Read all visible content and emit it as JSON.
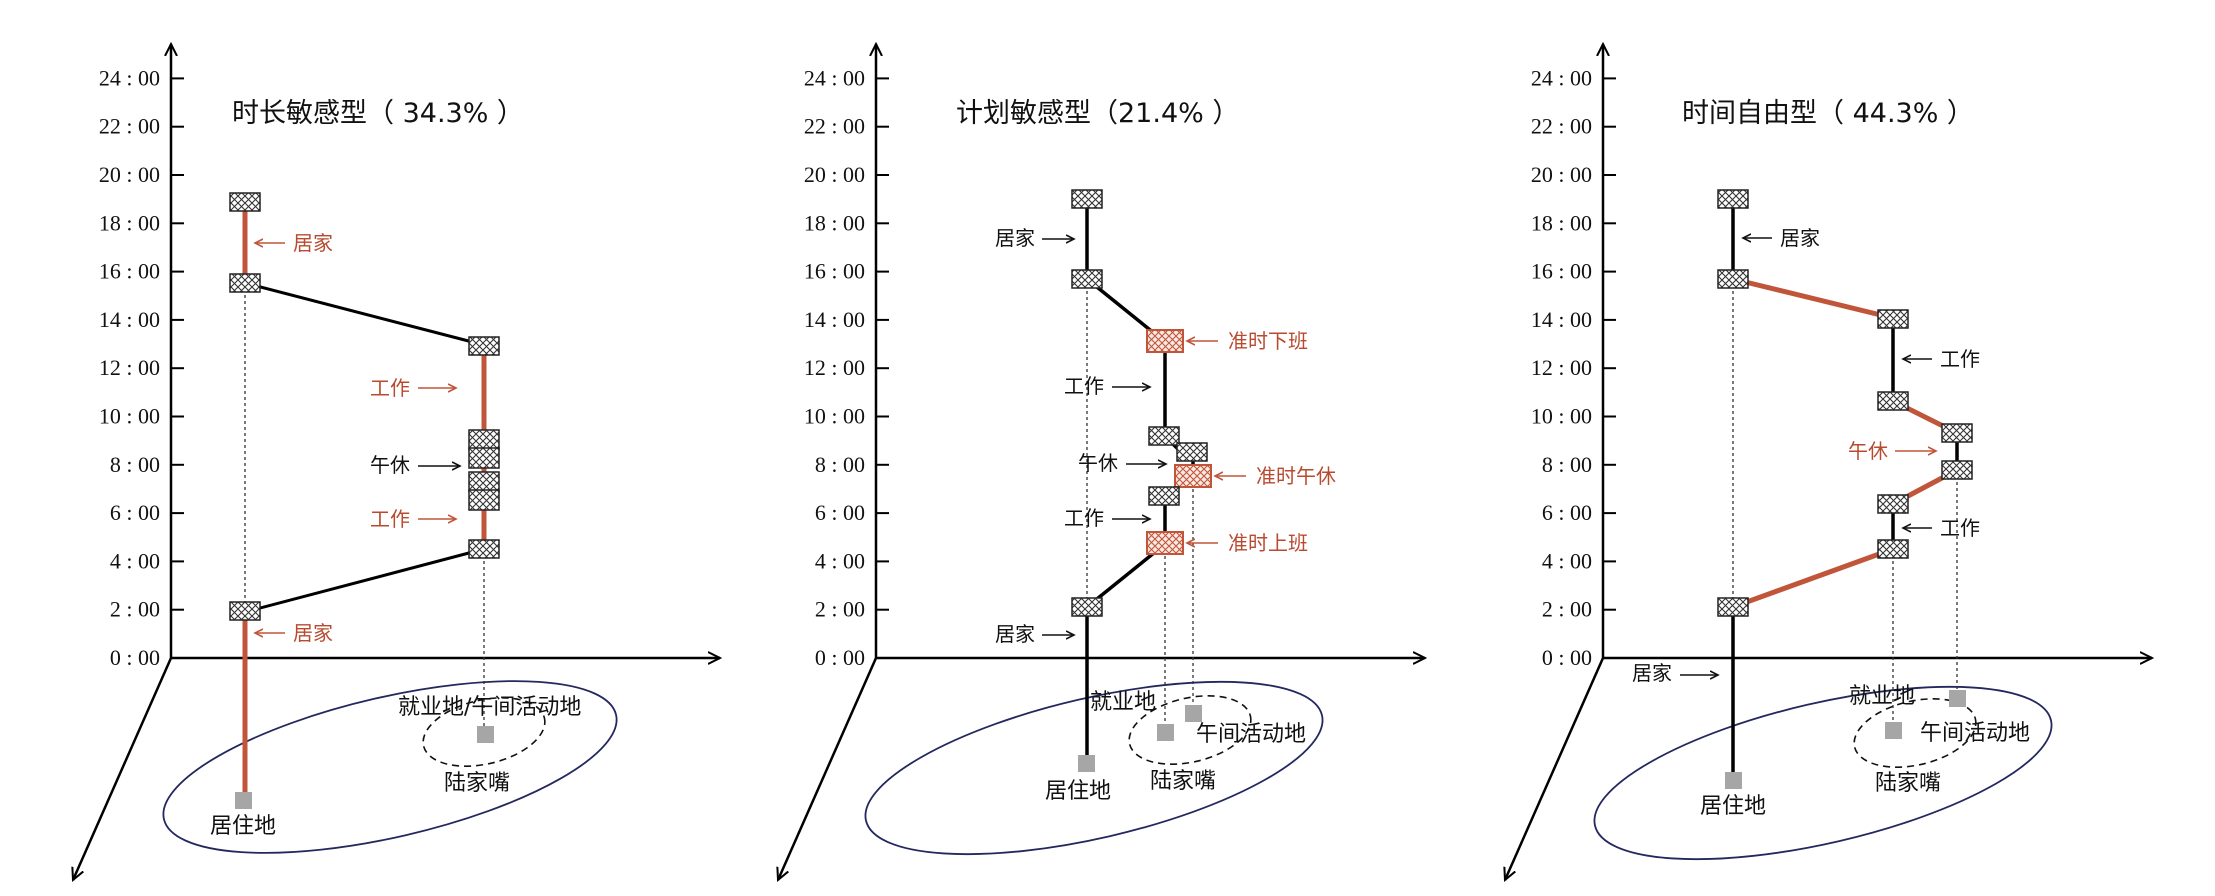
{
  "colors": {
    "axis": "#000000",
    "accent": "#c0553a",
    "accent_text": "#b84a2f",
    "ellipse": "#23285e",
    "marker_fill": "#a6a6a6",
    "text": "#111111"
  },
  "y_ticks": [
    "0 : 00",
    "2 : 00",
    "4 : 00",
    "6 : 00",
    "8 : 00",
    "10 : 00",
    "12 : 00",
    "14 : 00",
    "16 : 00",
    "18 : 00",
    "20 : 00",
    "22 : 00",
    "24 : 00"
  ],
  "panels": [
    {
      "title": "时长敏感型（ 34.3% ）",
      "places": {
        "home": "居住地",
        "work": "就业地/午间活动地",
        "district": "陆家嘴"
      },
      "annotations": [
        {
          "text": "居家",
          "color": "red"
        },
        {
          "text": "工作",
          "color": "red"
        },
        {
          "text": "午休",
          "color": "black"
        },
        {
          "text": "工作",
          "color": "red"
        },
        {
          "text": "居家",
          "color": "red"
        }
      ]
    },
    {
      "title": "计划敏感型（21.4% ）",
      "places": {
        "home": "居住地",
        "work": "就业地",
        "lunch": "午间活动地",
        "district": "陆家嘴"
      },
      "annotations": [
        {
          "text": "居家",
          "color": "black"
        },
        {
          "text": "准时下班",
          "color": "red"
        },
        {
          "text": "工作",
          "color": "black"
        },
        {
          "text": "午休",
          "color": "black"
        },
        {
          "text": "准时午休",
          "color": "red"
        },
        {
          "text": "工作",
          "color": "black"
        },
        {
          "text": "准时上班",
          "color": "red"
        },
        {
          "text": "居家",
          "color": "black"
        }
      ]
    },
    {
      "title": "时间自由型（ 44.3% ）",
      "places": {
        "home": "居住地",
        "work": "就业地",
        "lunch": "午间活动地",
        "district": "陆家嘴"
      },
      "annotations": [
        {
          "text": "居家",
          "color": "black"
        },
        {
          "text": "工作",
          "color": "black"
        },
        {
          "text": "午休",
          "color": "red"
        },
        {
          "text": "工作",
          "color": "black"
        },
        {
          "text": "居家",
          "color": "black"
        }
      ]
    }
  ]
}
